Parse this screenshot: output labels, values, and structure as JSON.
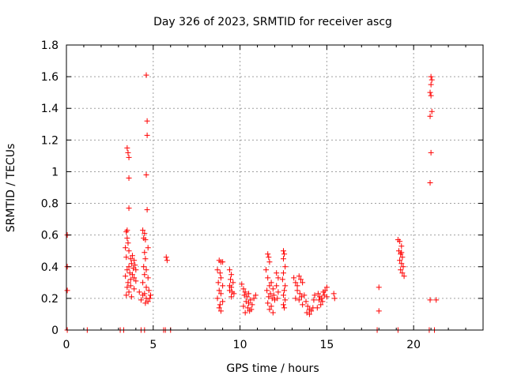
{
  "chart_data": {
    "type": "scatter",
    "title": "Day 326 of 2023, SRMTID for receiver ascg",
    "xlabel": "GPS time / hours",
    "ylabel": "SRMTID / TECUs",
    "xlim": [
      0,
      24
    ],
    "ylim": [
      0,
      1.8
    ],
    "xticks": [
      0,
      5,
      10,
      15,
      20
    ],
    "yticks": [
      0,
      0.2,
      0.4,
      0.6,
      0.8,
      1,
      1.2,
      1.4,
      1.6,
      1.8
    ],
    "xtick_labels": [
      "0",
      "5",
      "10",
      "15",
      "20"
    ],
    "ytick_labels": [
      "0",
      "0.2",
      "0.4",
      "0.6",
      "0.8",
      "1",
      "1.2",
      "1.4",
      "1.6",
      "1.8"
    ],
    "grid": true,
    "marker": "plus",
    "color": "#ff0000",
    "series": [
      {
        "name": "SRMTID",
        "points": [
          [
            0.05,
            0.6
          ],
          [
            0.05,
            0.4
          ],
          [
            0.05,
            0.25
          ],
          [
            0.05,
            0
          ],
          [
            1.2,
            0
          ],
          [
            3.1,
            0
          ],
          [
            3.3,
            0
          ],
          [
            4.3,
            0
          ],
          [
            4.5,
            0
          ],
          [
            5.6,
            0
          ],
          [
            5.7,
            0
          ],
          [
            6.0,
            0
          ],
          [
            3.5,
            1.15
          ],
          [
            3.55,
            1.12
          ],
          [
            3.6,
            1.09
          ],
          [
            3.6,
            0.96
          ],
          [
            3.6,
            0.77
          ],
          [
            3.45,
            0.62
          ],
          [
            3.5,
            0.63
          ],
          [
            3.5,
            0.58
          ],
          [
            3.55,
            0.55
          ],
          [
            3.4,
            0.52
          ],
          [
            3.6,
            0.5
          ],
          [
            3.45,
            0.46
          ],
          [
            3.7,
            0.45
          ],
          [
            3.8,
            0.47
          ],
          [
            3.9,
            0.44
          ],
          [
            3.75,
            0.42
          ],
          [
            3.6,
            0.4
          ],
          [
            3.5,
            0.38
          ],
          [
            3.65,
            0.36
          ],
          [
            3.8,
            0.35
          ],
          [
            3.9,
            0.33
          ],
          [
            3.4,
            0.34
          ],
          [
            3.55,
            0.3
          ],
          [
            3.7,
            0.28
          ],
          [
            3.5,
            0.27
          ],
          [
            3.6,
            0.24
          ],
          [
            3.45,
            0.22
          ],
          [
            3.75,
            0.21
          ],
          [
            3.9,
            0.26
          ],
          [
            4.0,
            0.38
          ],
          [
            4.0,
            0.31
          ],
          [
            3.85,
            0.39
          ],
          [
            3.95,
            0.41
          ],
          [
            3.7,
            0.32
          ],
          [
            4.6,
            1.61
          ],
          [
            4.65,
            1.32
          ],
          [
            4.65,
            1.23
          ],
          [
            4.6,
            0.98
          ],
          [
            4.65,
            0.76
          ],
          [
            4.4,
            0.63
          ],
          [
            4.5,
            0.61
          ],
          [
            4.45,
            0.58
          ],
          [
            4.55,
            0.57
          ],
          [
            4.7,
            0.52
          ],
          [
            4.5,
            0.49
          ],
          [
            4.55,
            0.45
          ],
          [
            4.45,
            0.4
          ],
          [
            4.6,
            0.38
          ],
          [
            4.5,
            0.35
          ],
          [
            4.7,
            0.33
          ],
          [
            4.4,
            0.3
          ],
          [
            4.6,
            0.27
          ],
          [
            4.75,
            0.25
          ],
          [
            4.5,
            0.23
          ],
          [
            4.4,
            0.22
          ],
          [
            4.6,
            0.2
          ],
          [
            4.8,
            0.2
          ],
          [
            4.3,
            0.19
          ],
          [
            4.7,
            0.18
          ],
          [
            4.55,
            0.17
          ],
          [
            4.85,
            0.22
          ],
          [
            4.2,
            0.24
          ],
          [
            5.75,
            0.46
          ],
          [
            5.8,
            0.44
          ],
          [
            8.8,
            0.44
          ],
          [
            8.9,
            0.43
          ],
          [
            9.0,
            0.43
          ],
          [
            8.7,
            0.38
          ],
          [
            8.85,
            0.36
          ],
          [
            8.9,
            0.33
          ],
          [
            8.75,
            0.3
          ],
          [
            9.0,
            0.28
          ],
          [
            8.8,
            0.25
          ],
          [
            8.9,
            0.23
          ],
          [
            8.7,
            0.2
          ],
          [
            9.0,
            0.18
          ],
          [
            8.85,
            0.16
          ],
          [
            8.8,
            0.14
          ],
          [
            8.9,
            0.12
          ],
          [
            9.4,
            0.38
          ],
          [
            9.5,
            0.35
          ],
          [
            9.45,
            0.32
          ],
          [
            9.6,
            0.3
          ],
          [
            9.5,
            0.27
          ],
          [
            9.4,
            0.25
          ],
          [
            9.55,
            0.24
          ],
          [
            9.65,
            0.23
          ],
          [
            9.5,
            0.21
          ],
          [
            9.4,
            0.28
          ],
          [
            10.1,
            0.29
          ],
          [
            10.2,
            0.26
          ],
          [
            10.3,
            0.24
          ],
          [
            10.25,
            0.22
          ],
          [
            10.4,
            0.21
          ],
          [
            10.5,
            0.23
          ],
          [
            10.6,
            0.19
          ],
          [
            10.35,
            0.18
          ],
          [
            10.5,
            0.17
          ],
          [
            10.7,
            0.16
          ],
          [
            10.2,
            0.15
          ],
          [
            10.45,
            0.14
          ],
          [
            10.65,
            0.13
          ],
          [
            10.55,
            0.12
          ],
          [
            10.8,
            0.2
          ],
          [
            10.9,
            0.22
          ],
          [
            10.3,
            0.11
          ],
          [
            11.6,
            0.48
          ],
          [
            11.65,
            0.46
          ],
          [
            11.7,
            0.43
          ],
          [
            11.5,
            0.38
          ],
          [
            11.6,
            0.33
          ],
          [
            11.8,
            0.3
          ],
          [
            11.7,
            0.28
          ],
          [
            11.9,
            0.26
          ],
          [
            11.55,
            0.25
          ],
          [
            11.75,
            0.23
          ],
          [
            11.95,
            0.22
          ],
          [
            11.65,
            0.21
          ],
          [
            11.85,
            0.2
          ],
          [
            12.0,
            0.19
          ],
          [
            11.6,
            0.17
          ],
          [
            11.8,
            0.15
          ],
          [
            11.7,
            0.13
          ],
          [
            11.9,
            0.11
          ],
          [
            12.1,
            0.36
          ],
          [
            12.2,
            0.33
          ],
          [
            12.1,
            0.28
          ],
          [
            12.2,
            0.24
          ],
          [
            12.15,
            0.2
          ],
          [
            12.5,
            0.5
          ],
          [
            12.55,
            0.48
          ],
          [
            12.5,
            0.45
          ],
          [
            12.6,
            0.4
          ],
          [
            12.5,
            0.36
          ],
          [
            12.45,
            0.32
          ],
          [
            12.6,
            0.28
          ],
          [
            12.55,
            0.25
          ],
          [
            12.5,
            0.22
          ],
          [
            12.6,
            0.19
          ],
          [
            12.5,
            0.16
          ],
          [
            12.55,
            0.14
          ],
          [
            13.1,
            0.33
          ],
          [
            13.2,
            0.3
          ],
          [
            13.3,
            0.28
          ],
          [
            13.4,
            0.34
          ],
          [
            13.5,
            0.32
          ],
          [
            13.6,
            0.3
          ],
          [
            13.3,
            0.25
          ],
          [
            13.45,
            0.23
          ],
          [
            13.55,
            0.21
          ],
          [
            13.2,
            0.2
          ],
          [
            13.4,
            0.19
          ],
          [
            13.7,
            0.22
          ],
          [
            13.8,
            0.18
          ],
          [
            13.6,
            0.16
          ],
          [
            13.9,
            0.15
          ],
          [
            14.0,
            0.13
          ],
          [
            14.1,
            0.12
          ],
          [
            13.85,
            0.11
          ],
          [
            14.0,
            0.1
          ],
          [
            14.2,
            0.14
          ],
          [
            14.3,
            0.22
          ],
          [
            14.25,
            0.19
          ],
          [
            14.5,
            0.23
          ],
          [
            14.6,
            0.21
          ],
          [
            14.7,
            0.2
          ],
          [
            14.8,
            0.24
          ],
          [
            14.9,
            0.25
          ],
          [
            15.0,
            0.27
          ],
          [
            14.55,
            0.19
          ],
          [
            14.75,
            0.18
          ],
          [
            14.65,
            0.16
          ],
          [
            14.85,
            0.22
          ],
          [
            15.0,
            0.21
          ],
          [
            14.45,
            0.14
          ],
          [
            15.4,
            0.23
          ],
          [
            15.45,
            0.2
          ],
          [
            18.0,
            0.27
          ],
          [
            18.0,
            0.12
          ],
          [
            17.9,
            0
          ],
          [
            19.1,
            0.57
          ],
          [
            19.2,
            0.56
          ],
          [
            19.3,
            0.53
          ],
          [
            19.15,
            0.5
          ],
          [
            19.25,
            0.48
          ],
          [
            19.35,
            0.46
          ],
          [
            19.2,
            0.44
          ],
          [
            19.3,
            0.42
          ],
          [
            19.4,
            0.4
          ],
          [
            19.25,
            0.38
          ],
          [
            19.35,
            0.36
          ],
          [
            19.45,
            0.34
          ],
          [
            19.3,
            0.49
          ],
          [
            19.1,
            0
          ],
          [
            21.0,
            1.6
          ],
          [
            21.05,
            1.58
          ],
          [
            21.0,
            1.55
          ],
          [
            20.95,
            1.5
          ],
          [
            21.0,
            1.48
          ],
          [
            21.05,
            1.38
          ],
          [
            20.95,
            1.35
          ],
          [
            21.0,
            1.12
          ],
          [
            20.95,
            0.93
          ],
          [
            20.95,
            0.19
          ],
          [
            21.3,
            0.19
          ],
          [
            20.9,
            0
          ],
          [
            21.2,
            0
          ]
        ]
      }
    ]
  }
}
